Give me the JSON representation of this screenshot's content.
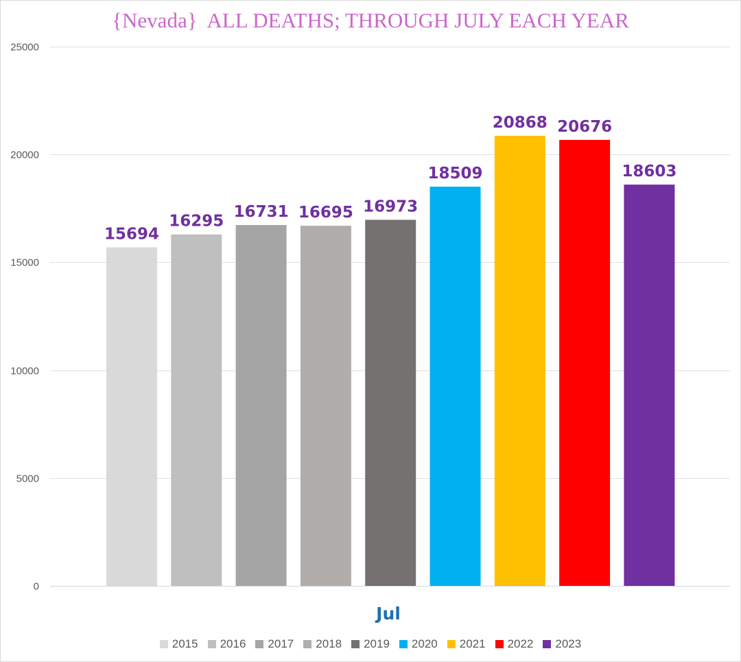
{
  "chart_data": {
    "type": "bar",
    "title": "{Nevada}  ALL DEATHS; THROUGH JULY EACH YEAR",
    "categories": [
      "Jul"
    ],
    "xlabel": "",
    "ylabel": "",
    "ylim": [
      0,
      25000
    ],
    "yticks": [
      0,
      5000,
      10000,
      15000,
      20000,
      25000
    ],
    "grid": true,
    "legend_position": "bottom",
    "series": [
      {
        "name": "2015",
        "values": [
          15694
        ],
        "color": "#d9d9d9"
      },
      {
        "name": "2016",
        "values": [
          16295
        ],
        "color": "#bfbfbf"
      },
      {
        "name": "2017",
        "values": [
          16731
        ],
        "color": "#a5a5a5"
      },
      {
        "name": "2018",
        "values": [
          16695
        ],
        "color": "#b0adab"
      },
      {
        "name": "2019",
        "values": [
          16973
        ],
        "color": "#767171"
      },
      {
        "name": "2020",
        "values": [
          18509
        ],
        "color": "#00b0f0"
      },
      {
        "name": "2021",
        "values": [
          20868
        ],
        "color": "#ffc000"
      },
      {
        "name": "2022",
        "values": [
          20676
        ],
        "color": "#ff0000"
      },
      {
        "name": "2023",
        "values": [
          18603
        ],
        "color": "#7030a0"
      }
    ]
  },
  "colors": {
    "title": "#cc66cc",
    "data_label": "#7030a0",
    "category_label": "#1f6fb5",
    "gridline": "#d9e1ea",
    "tick_label": "#595959"
  }
}
